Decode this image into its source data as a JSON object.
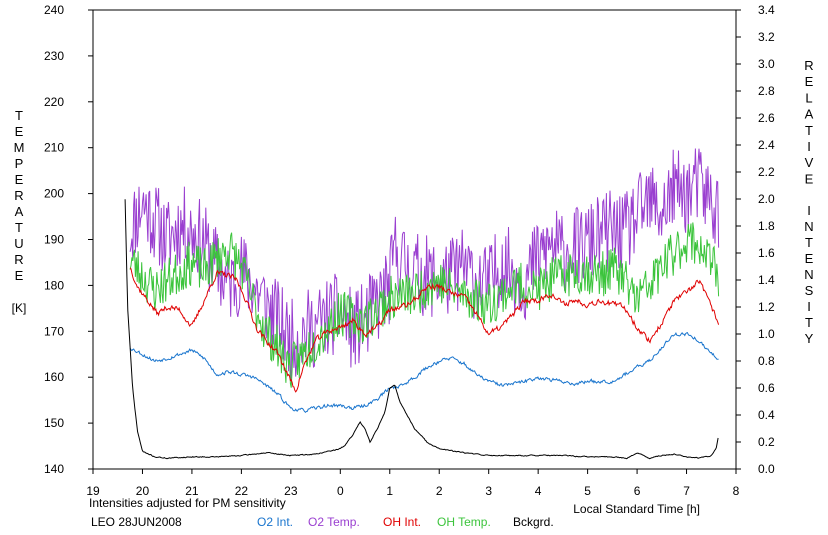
{
  "chart_data": {
    "type": "line",
    "left_axis": {
      "label_letters": [
        "T",
        "E",
        "M",
        "P",
        "E",
        "R",
        "A",
        "T",
        "U",
        "R",
        "E"
      ],
      "unit": "[K]",
      "range": [
        140,
        240
      ],
      "ticks": [
        "140",
        "150",
        "160",
        "170",
        "180",
        "190",
        "200",
        "210",
        "220",
        "230",
        "240"
      ]
    },
    "right_axis": {
      "label_top_letters": [
        "R",
        "E",
        "L",
        "A",
        "T",
        "I",
        "V",
        "E"
      ],
      "label_bottom_letters": [
        "I",
        "N",
        "T",
        "E",
        "N",
        "S",
        "I",
        "T",
        "Y"
      ],
      "range": [
        0,
        3.4
      ],
      "ticks": [
        "0.0",
        "0.2",
        "0.4",
        "0.6",
        "0.8",
        "1.0",
        "1.2",
        "1.4",
        "1.6",
        "1.8",
        "2.0",
        "2.2",
        "2.4",
        "2.6",
        "2.8",
        "3.0",
        "3.2",
        "3.4"
      ]
    },
    "x_axis": {
      "label": "Local Standard Time [h]",
      "range": [
        19,
        32
      ],
      "ticks": [
        "19",
        "20",
        "21",
        "22",
        "23",
        "0",
        "1",
        "2",
        "3",
        "4",
        "5",
        "6",
        "7",
        "8"
      ]
    },
    "note": "Intensities adjusted for PM sensitivity",
    "station": "LEO 28JUN2008",
    "colors": {
      "o2_int": "#1874cd",
      "o2_temp": "#9a3fd0",
      "oh_int": "#e00000",
      "oh_temp": "#3cc43c",
      "bckgrd": "#000000",
      "note": "#3cc43c"
    },
    "legend": [
      {
        "key": "o2_int",
        "label": "O2 Int."
      },
      {
        "key": "o2_temp",
        "label": "O2 Temp."
      },
      {
        "key": "oh_int",
        "label": "OH Int."
      },
      {
        "key": "oh_temp",
        "label": "OH Temp."
      },
      {
        "key": "bckgrd",
        "label": "Bckgrd."
      }
    ],
    "series": [
      {
        "key": "o2_temp",
        "axis": "left",
        "x": [
          19.75,
          20.0,
          20.25,
          20.5,
          20.75,
          21.0,
          21.25,
          21.5,
          21.75,
          22.0,
          22.25,
          22.5,
          22.75,
          23.0,
          23.25,
          23.5,
          23.75,
          24.0,
          24.25,
          24.5,
          24.75,
          25.0,
          25.1,
          25.25,
          25.5,
          25.75,
          26.0,
          26.25,
          26.5,
          26.75,
          27.0,
          27.25,
          27.5,
          27.75,
          28.0,
          28.25,
          28.5,
          28.75,
          29.0,
          29.25,
          29.5,
          29.75,
          30.0,
          30.25,
          30.5,
          30.75,
          31.0,
          31.25,
          31.5,
          31.65
        ],
        "y": [
          192,
          198,
          194,
          190,
          193,
          192,
          189,
          184,
          180,
          183,
          180,
          176,
          172,
          168,
          170,
          171,
          173,
          174,
          170,
          172,
          176,
          180,
          188,
          185,
          183,
          182,
          181,
          182,
          184,
          181,
          180,
          185,
          183,
          181,
          186,
          189,
          187,
          188,
          189,
          191,
          192,
          191,
          195,
          198,
          196,
          201,
          200,
          202,
          198,
          196
        ],
        "amp": 9,
        "seed": 11
      },
      {
        "key": "oh_temp",
        "axis": "left",
        "x": [
          19.75,
          20.0,
          20.25,
          20.5,
          20.75,
          21.0,
          21.25,
          21.5,
          21.75,
          22.0,
          22.25,
          22.5,
          22.75,
          23.0,
          23.25,
          23.5,
          23.75,
          24.0,
          24.25,
          24.5,
          24.75,
          25.0,
          25.25,
          25.5,
          25.75,
          26.0,
          26.25,
          26.5,
          26.75,
          27.0,
          27.25,
          27.5,
          27.75,
          28.0,
          28.25,
          28.5,
          28.75,
          29.0,
          29.25,
          29.5,
          29.75,
          30.0,
          30.25,
          30.5,
          30.75,
          31.0,
          31.25,
          31.5,
          31.65
        ],
        "y": [
          186,
          182,
          179,
          181,
          183,
          185,
          183,
          186,
          188,
          184,
          176,
          170,
          166,
          162,
          165,
          168,
          171,
          174,
          173,
          172,
          175,
          177,
          178,
          178,
          180,
          181,
          179,
          178,
          177,
          176,
          178,
          180,
          180,
          179,
          181,
          182,
          183,
          183,
          182,
          184,
          181,
          177,
          180,
          184,
          187,
          190,
          189,
          185,
          181
        ],
        "amp": 5,
        "seed": 23
      },
      {
        "key": "oh_int",
        "axis": "right",
        "x": [
          19.75,
          19.9,
          20.1,
          20.3,
          20.5,
          20.75,
          21.0,
          21.25,
          21.5,
          21.75,
          21.9,
          22.1,
          22.3,
          22.5,
          22.75,
          23.0,
          23.1,
          23.25,
          23.5,
          23.75,
          24.0,
          24.25,
          24.5,
          24.75,
          25.0,
          25.25,
          25.5,
          25.75,
          26.0,
          26.25,
          26.5,
          26.75,
          27.0,
          27.25,
          27.5,
          27.75,
          28.0,
          28.25,
          28.5,
          28.75,
          29.0,
          29.25,
          29.5,
          29.75,
          30.0,
          30.25,
          30.5,
          30.75,
          31.0,
          31.25,
          31.5,
          31.65
        ],
        "y": [
          1.5,
          1.35,
          1.25,
          1.15,
          1.2,
          1.18,
          1.05,
          1.25,
          1.45,
          1.43,
          1.4,
          1.25,
          1.05,
          0.95,
          0.85,
          0.65,
          0.58,
          0.75,
          0.95,
          1.02,
          1.05,
          1.1,
          1.0,
          1.05,
          1.18,
          1.2,
          1.25,
          1.35,
          1.35,
          1.3,
          1.28,
          1.15,
          1.0,
          1.05,
          1.15,
          1.25,
          1.25,
          1.3,
          1.22,
          1.25,
          1.22,
          1.25,
          1.22,
          1.2,
          1.05,
          0.95,
          1.08,
          1.25,
          1.3,
          1.4,
          1.2,
          1.08
        ],
        "amp": 0.035,
        "seed": 37
      },
      {
        "key": "o2_int",
        "axis": "right",
        "x": [
          19.75,
          20.0,
          20.25,
          20.5,
          20.75,
          21.0,
          21.25,
          21.5,
          21.75,
          22.0,
          22.25,
          22.5,
          22.75,
          23.0,
          23.25,
          23.5,
          23.75,
          24.0,
          24.25,
          24.5,
          24.75,
          25.0,
          25.25,
          25.5,
          25.75,
          26.0,
          26.25,
          26.5,
          26.75,
          27.0,
          27.25,
          27.5,
          27.75,
          28.0,
          28.25,
          28.5,
          28.75,
          29.0,
          29.25,
          29.5,
          29.75,
          30.0,
          30.25,
          30.5,
          30.75,
          31.0,
          31.25,
          31.5,
          31.65
        ],
        "y": [
          0.9,
          0.85,
          0.8,
          0.82,
          0.85,
          0.88,
          0.82,
          0.7,
          0.72,
          0.7,
          0.68,
          0.62,
          0.55,
          0.45,
          0.43,
          0.45,
          0.47,
          0.47,
          0.45,
          0.47,
          0.52,
          0.6,
          0.62,
          0.68,
          0.75,
          0.8,
          0.82,
          0.78,
          0.7,
          0.65,
          0.62,
          0.63,
          0.65,
          0.68,
          0.66,
          0.65,
          0.63,
          0.65,
          0.65,
          0.65,
          0.7,
          0.75,
          0.8,
          0.9,
          1.0,
          1.0,
          0.95,
          0.85,
          0.82
        ],
        "amp": 0.022,
        "seed": 53
      },
      {
        "key": "bckgrd",
        "axis": "right",
        "x": [
          19.65,
          19.7,
          19.75,
          19.8,
          19.9,
          20.0,
          20.25,
          20.5,
          21.0,
          21.5,
          22.0,
          22.5,
          23.0,
          23.5,
          24.0,
          24.1,
          24.25,
          24.4,
          24.5,
          24.6,
          24.75,
          24.9,
          25.0,
          25.1,
          25.2,
          25.35,
          25.5,
          25.75,
          26.0,
          26.5,
          27.0,
          27.5,
          28.0,
          28.5,
          29.0,
          29.5,
          29.8,
          30.0,
          30.25,
          30.5,
          30.75,
          31.0,
          31.25,
          31.5,
          31.6,
          31.65
        ],
        "y": [
          2.0,
          1.2,
          0.9,
          0.6,
          0.28,
          0.13,
          0.09,
          0.08,
          0.09,
          0.09,
          0.1,
          0.12,
          0.1,
          0.11,
          0.15,
          0.18,
          0.25,
          0.35,
          0.3,
          0.2,
          0.3,
          0.42,
          0.6,
          0.62,
          0.5,
          0.4,
          0.3,
          0.2,
          0.15,
          0.12,
          0.1,
          0.1,
          0.1,
          0.1,
          0.09,
          0.09,
          0.08,
          0.12,
          0.08,
          0.1,
          0.11,
          0.09,
          0.08,
          0.1,
          0.15,
          0.25
        ],
        "amp": 0.006,
        "seed": 71
      }
    ]
  }
}
